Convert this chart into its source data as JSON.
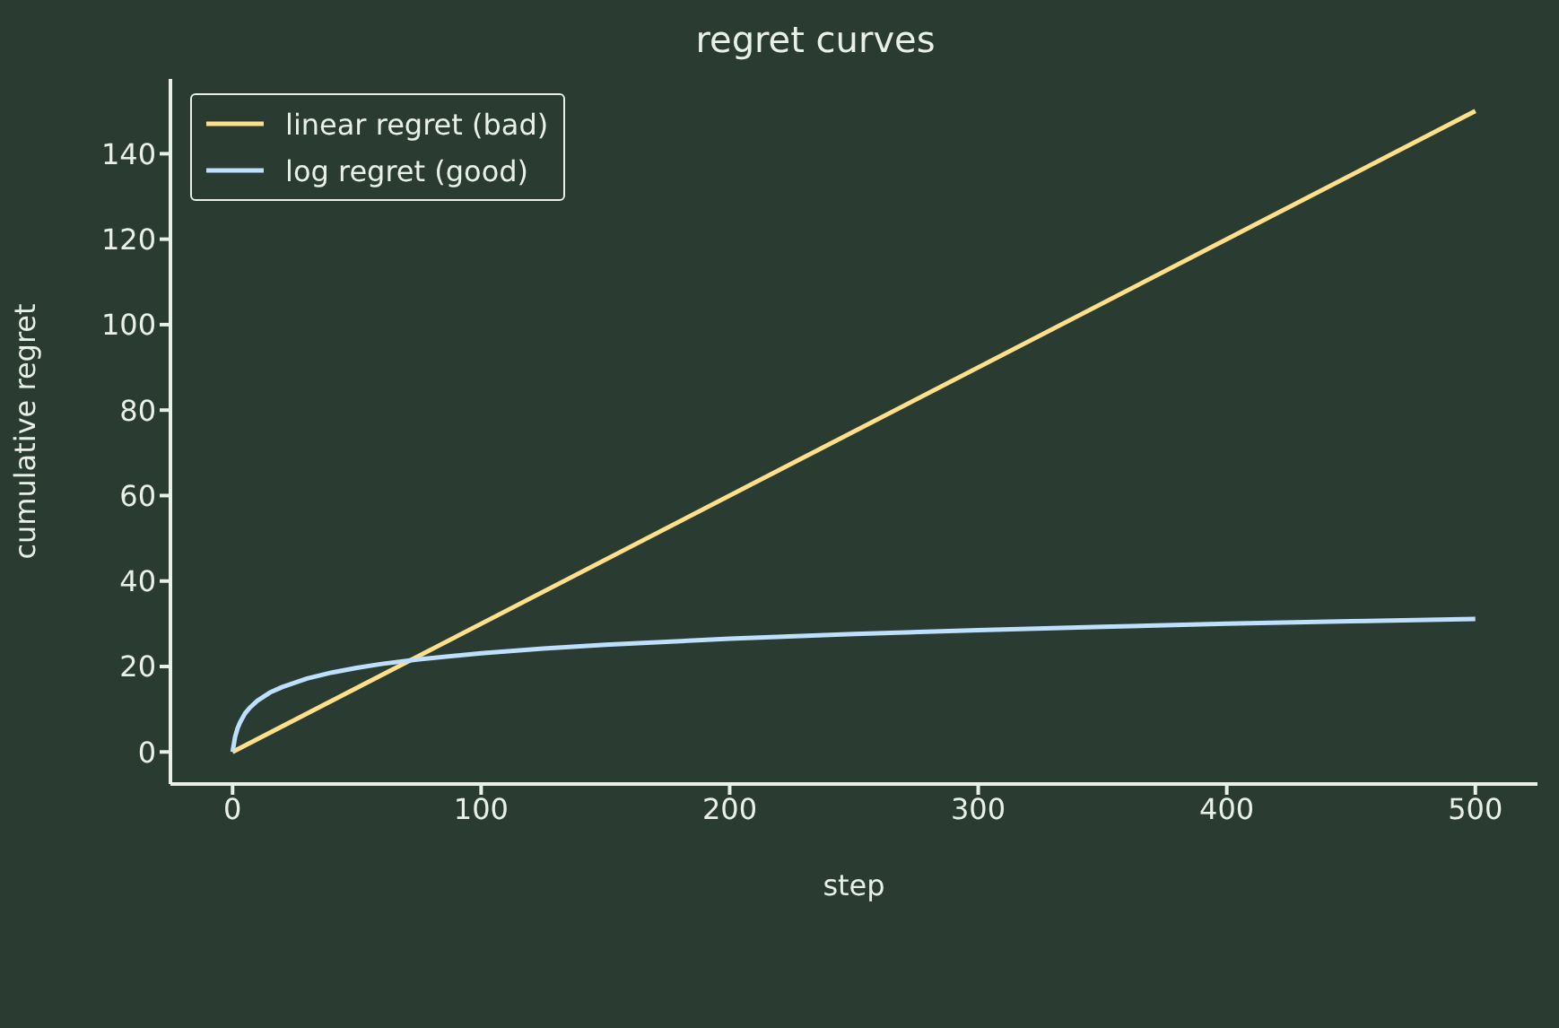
{
  "chart_data": {
    "type": "line",
    "title": "regret curves",
    "xlabel": "step",
    "ylabel": "cumulative regret",
    "xlim": [
      -25,
      525
    ],
    "xticks": [
      0,
      100,
      200,
      300,
      400,
      500
    ],
    "ylim": [
      -7.5,
      157.5
    ],
    "yticks": [
      0,
      20,
      40,
      60,
      80,
      100,
      120,
      140
    ],
    "grid": false,
    "legend": "top left",
    "marker": "none",
    "line_style": "solid",
    "series": [
      {
        "name": "linear regret (bad)",
        "color": "#ffe08a",
        "x": [
          0,
          500
        ],
        "values": [
          0,
          150
        ]
      },
      {
        "name": "log regret (good)",
        "color": "#bfdfff",
        "x": [
          0,
          1,
          2,
          3,
          5,
          7,
          10,
          15,
          20,
          30,
          40,
          50,
          60,
          75,
          100,
          125,
          150,
          200,
          250,
          300,
          350,
          400,
          450,
          500
        ],
        "values": [
          0,
          3.5,
          5.5,
          6.9,
          9.0,
          10.4,
          12.0,
          13.9,
          15.2,
          17.2,
          18.6,
          19.7,
          20.6,
          21.7,
          23.1,
          24.2,
          25.1,
          26.5,
          27.6,
          28.5,
          29.3,
          30.0,
          30.6,
          31.1
        ]
      }
    ]
  }
}
